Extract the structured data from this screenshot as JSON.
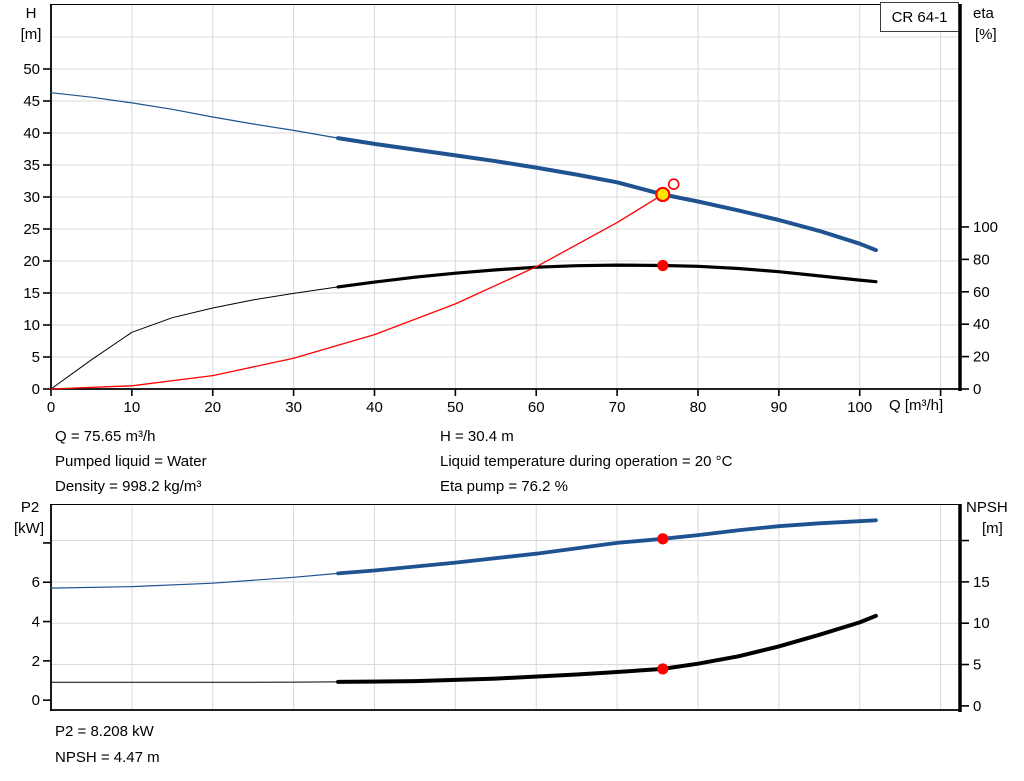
{
  "model": "CR 64-1",
  "colors": {
    "blue": "#1f5291",
    "black": "#000000",
    "red": "#ff0000",
    "yellow": "#ffe600",
    "grid": "#d9d9d9",
    "frame": "#000000"
  },
  "info_top": {
    "left": [
      "Q = 75.65 m³/h",
      "Pumped liquid = Water",
      "Density = 998.2 kg/m³"
    ],
    "right": [
      "H = 30.4 m",
      "Liquid temperature during operation = 20 °C",
      "Eta pump = 76.2 %"
    ]
  },
  "info_bottom": [
    "P2 = 8.208 kW",
    "NPSH = 4.47 m"
  ],
  "chart_data": [
    {
      "type": "line",
      "name": "hq-eta-chart",
      "title": "CR 64-1",
      "x_axis": {
        "label": "Q [m³/h]",
        "min": 0,
        "max": 112.4,
        "ticks": [
          [
            0,
            "0"
          ],
          [
            10,
            "10"
          ],
          [
            20,
            "20"
          ],
          [
            30,
            "30"
          ],
          [
            40,
            "40"
          ],
          [
            50,
            "50"
          ],
          [
            60,
            "60"
          ],
          [
            70,
            "70"
          ],
          [
            80,
            "80"
          ],
          [
            90,
            "90"
          ],
          [
            100,
            "100"
          ],
          [
            110,
            ""
          ]
        ],
        "grid": [
          10,
          20,
          30,
          40,
          50,
          60,
          70,
          80,
          90,
          100,
          110
        ]
      },
      "y_left": {
        "title_lines": [
          "H",
          "[m]"
        ],
        "min": 0,
        "max": 60,
        "ticks": [
          [
            0,
            "0"
          ],
          [
            5,
            "5"
          ],
          [
            10,
            "10"
          ],
          [
            15,
            "15"
          ],
          [
            20,
            "20"
          ],
          [
            25,
            "25"
          ],
          [
            30,
            "30"
          ],
          [
            35,
            "35"
          ],
          [
            40,
            "40"
          ],
          [
            45,
            "45"
          ],
          [
            50,
            "50"
          ]
        ]
      },
      "y_right": {
        "title_lines": [
          "eta",
          "[%]"
        ],
        "min": 0,
        "max": 237,
        "ticks": [
          [
            0,
            "0"
          ],
          [
            20,
            "20"
          ],
          [
            40,
            "40"
          ],
          [
            60,
            "60"
          ],
          [
            80,
            "80"
          ],
          [
            100,
            "100"
          ]
        ]
      },
      "grid_y": {
        "axis": "left",
        "values": [
          5,
          10,
          15,
          20,
          25,
          30,
          35,
          40,
          45,
          50,
          55
        ]
      },
      "series": [
        {
          "name": "head-curve-extended",
          "axis": "left",
          "color": "blue",
          "width": 1.2,
          "points": [
            [
              0,
              46.3
            ],
            [
              5,
              45.6
            ],
            [
              10,
              44.7
            ],
            [
              15,
              43.7
            ],
            [
              20,
              42.5
            ],
            [
              25,
              41.4
            ],
            [
              30,
              40.4
            ],
            [
              35.5,
              39.2
            ]
          ]
        },
        {
          "name": "head-curve",
          "axis": "left",
          "color": "blue",
          "width": 4,
          "points": [
            [
              35.5,
              39.2
            ],
            [
              40,
              38.3
            ],
            [
              45,
              37.4
            ],
            [
              50,
              36.5
            ],
            [
              55,
              35.6
            ],
            [
              60,
              34.6
            ],
            [
              65,
              33.5
            ],
            [
              70,
              32.3
            ],
            [
              75.65,
              30.4
            ],
            [
              80,
              29.3
            ],
            [
              85,
              27.9
            ],
            [
              90,
              26.4
            ],
            [
              95,
              24.7
            ],
            [
              100,
              22.7
            ],
            [
              102,
              21.7
            ]
          ]
        },
        {
          "name": "eta-curve-extended",
          "axis": "right",
          "color": "black",
          "width": 1,
          "points": [
            [
              0,
              0
            ],
            [
              5,
              18
            ],
            [
              10,
              35
            ],
            [
              15,
              44
            ],
            [
              20,
              50
            ],
            [
              25,
              55
            ],
            [
              30,
              59
            ],
            [
              35.5,
              63
            ]
          ]
        },
        {
          "name": "eta-curve",
          "axis": "right",
          "color": "black",
          "width": 3.2,
          "points": [
            [
              35.5,
              63
            ],
            [
              40,
              66
            ],
            [
              45,
              69
            ],
            [
              50,
              71.5
            ],
            [
              55,
              73.5
            ],
            [
              60,
              75.2
            ],
            [
              65,
              76.1
            ],
            [
              70,
              76.5
            ],
            [
              75.65,
              76.2
            ],
            [
              80,
              75.7
            ],
            [
              85,
              74.4
            ],
            [
              90,
              72.4
            ],
            [
              95,
              69.8
            ],
            [
              100,
              67.2
            ],
            [
              102,
              66.2
            ]
          ]
        },
        {
          "name": "system-curve",
          "axis": "left",
          "color": "red",
          "width": 1.3,
          "points": [
            [
              0,
              0
            ],
            [
              10,
              0.5
            ],
            [
              20,
              2.1
            ],
            [
              30,
              4.8
            ],
            [
              40,
              8.5
            ],
            [
              50,
              13.3
            ],
            [
              60,
              19.1
            ],
            [
              70,
              26.0
            ],
            [
              75.65,
              30.4
            ]
          ]
        }
      ],
      "markers": [
        {
          "name": "eta-point",
          "style": "dot",
          "axis": "right",
          "x": 75.65,
          "y": 76.2
        },
        {
          "name": "duty-point",
          "style": "duty",
          "axis": "left",
          "x": 75.65,
          "y": 30.4
        },
        {
          "name": "rated-point-ring",
          "style": "ring",
          "axis": "left",
          "x": 77.0,
          "y": 32.0
        }
      ]
    },
    {
      "type": "line",
      "name": "p2-npsh-chart",
      "x_axis": {
        "label": "",
        "min": 0,
        "max": 112.4,
        "ticks": [],
        "grid": [
          10,
          20,
          30,
          40,
          50,
          60,
          70,
          80,
          90,
          100,
          110
        ]
      },
      "y_left": {
        "title_lines": [
          "P2",
          "[kW]"
        ],
        "min": -0.5,
        "max": 9.93,
        "ticks": [
          [
            0,
            "0"
          ],
          [
            2,
            "2"
          ],
          [
            4,
            "4"
          ],
          [
            6,
            "6"
          ],
          [
            8,
            ""
          ]
        ]
      },
      "y_right": {
        "title_lines": [
          "NPSH",
          "[m]"
        ],
        "min": -0.5,
        "max": 24.3,
        "ticks": [
          [
            0,
            "0"
          ],
          [
            5,
            "5"
          ],
          [
            10,
            "10"
          ],
          [
            15,
            "15"
          ],
          [
            20,
            ""
          ]
        ]
      },
      "grid_y": {
        "axis": "right",
        "values": [
          5,
          10,
          15,
          20
        ]
      },
      "series": [
        {
          "name": "p2-curve-extended",
          "axis": "left",
          "color": "blue",
          "width": 1.2,
          "points": [
            [
              0,
              5.7
            ],
            [
              10,
              5.78
            ],
            [
              20,
              5.95
            ],
            [
              30,
              6.25
            ],
            [
              35.5,
              6.45
            ]
          ]
        },
        {
          "name": "p2-curve",
          "axis": "left",
          "color": "blue",
          "width": 3.8,
          "points": [
            [
              35.5,
              6.45
            ],
            [
              40,
              6.6
            ],
            [
              50,
              7.0
            ],
            [
              60,
              7.45
            ],
            [
              70,
              8.0
            ],
            [
              75.65,
              8.208
            ],
            [
              80,
              8.4
            ],
            [
              85,
              8.65
            ],
            [
              90,
              8.85
            ],
            [
              95,
              9.0
            ],
            [
              102,
              9.15
            ]
          ]
        },
        {
          "name": "npsh-curve-extended",
          "axis": "right",
          "color": "black",
          "width": 1,
          "points": [
            [
              0,
              2.85
            ],
            [
              10,
              2.85
            ],
            [
              20,
              2.85
            ],
            [
              30,
              2.88
            ],
            [
              35.5,
              2.9
            ]
          ]
        },
        {
          "name": "npsh-curve",
          "axis": "right",
          "color": "black",
          "width": 4,
          "points": [
            [
              35.5,
              2.9
            ],
            [
              45,
              3.0
            ],
            [
              55,
              3.3
            ],
            [
              65,
              3.8
            ],
            [
              70,
              4.1
            ],
            [
              75.65,
              4.47
            ],
            [
              80,
              5.1
            ],
            [
              85,
              6.0
            ],
            [
              90,
              7.2
            ],
            [
              95,
              8.6
            ],
            [
              100,
              10.1
            ],
            [
              102,
              10.9
            ]
          ]
        }
      ],
      "markers": [
        {
          "name": "p2-point",
          "style": "dot",
          "axis": "left",
          "x": 75.65,
          "y": 8.208
        },
        {
          "name": "npsh-point",
          "style": "dot",
          "axis": "right",
          "x": 75.65,
          "y": 4.47
        }
      ]
    }
  ]
}
